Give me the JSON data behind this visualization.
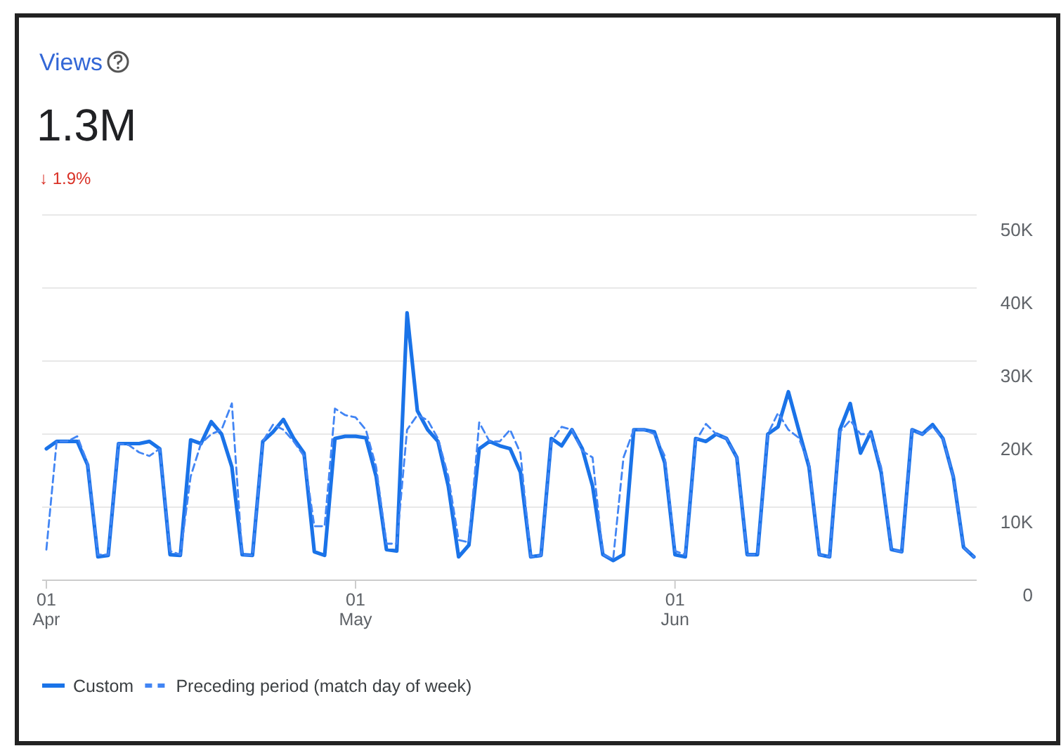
{
  "chart_data": {
    "type": "line",
    "title": "Views",
    "subtitle": "1.3M",
    "annotations": [
      "↓ 1.9%"
    ],
    "x": [
      "--04-01",
      "--04-02",
      "--04-03",
      "--04-04",
      "--04-05",
      "--04-06",
      "--04-07",
      "--04-08",
      "--04-09",
      "--04-10",
      "--04-11",
      "--04-12",
      "--04-13",
      "--04-14",
      "--04-15",
      "--04-16",
      "--04-17",
      "--04-18",
      "--04-19",
      "--04-20",
      "--04-21",
      "--04-22",
      "--04-23",
      "--04-24",
      "--04-25",
      "--04-26",
      "--04-27",
      "--04-28",
      "--04-29",
      "--04-30",
      "--05-01",
      "--05-02",
      "--05-03",
      "--05-04",
      "--05-05",
      "--05-06",
      "--05-07",
      "--05-08",
      "--05-09",
      "--05-10",
      "--05-11",
      "--05-12",
      "--05-13",
      "--05-14",
      "--05-15",
      "--05-16",
      "--05-17",
      "--05-18",
      "--05-19",
      "--05-20",
      "--05-21",
      "--05-22",
      "--05-23",
      "--05-24",
      "--05-25",
      "--05-26",
      "--05-27",
      "--05-28",
      "--05-29",
      "--05-30",
      "--05-31",
      "--06-01",
      "--06-02",
      "--06-03",
      "--06-04",
      "--06-05",
      "--06-06",
      "--06-07",
      "--06-08",
      "--06-09",
      "--06-10",
      "--06-11",
      "--06-12",
      "--06-13",
      "--06-14",
      "--06-15",
      "--06-16",
      "--06-17",
      "--06-18",
      "--06-19",
      "--06-20",
      "--06-21",
      "--06-22",
      "--06-23",
      "--06-24",
      "--06-25",
      "--06-26",
      "--06-27",
      "--06-28",
      "--06-29",
      "--06-30"
    ],
    "series": [
      {
        "name": "Custom",
        "color": "#1a73e8",
        "line_style": "solid",
        "values": [
          18000,
          19000,
          19000,
          19000,
          15800,
          3200,
          3400,
          18700,
          18700,
          18700,
          19000,
          18000,
          3500,
          3400,
          19200,
          18700,
          21700,
          20000,
          15500,
          3500,
          3400,
          19000,
          20300,
          22000,
          19400,
          17400,
          3900,
          3400,
          19400,
          19700,
          19700,
          19500,
          14200,
          4200,
          4000,
          36600,
          23200,
          20600,
          19000,
          12900,
          3200,
          4800,
          18000,
          19000,
          18400,
          18000,
          14800,
          3200,
          3400,
          19400,
          18400,
          20600,
          18000,
          12900,
          3500,
          2700,
          3500,
          20600,
          20600,
          20300,
          16100,
          3500,
          3200,
          19400,
          19000,
          20000,
          19400,
          16800,
          3500,
          3500,
          20000,
          21000,
          25800,
          20600,
          15500,
          3500,
          3200,
          20600,
          24200,
          17400,
          20300,
          14800,
          4200,
          3900,
          20600,
          20000,
          21300,
          19400,
          14200,
          4500,
          3200
        ]
      },
      {
        "name": "Preceding period (match day of week)",
        "color": "#4285f4",
        "line_style": "dashed",
        "values": [
          4200,
          19000,
          19000,
          19700,
          16000,
          3500,
          3500,
          18700,
          18500,
          17500,
          17000,
          18000,
          4000,
          3500,
          14200,
          18700,
          20000,
          20600,
          24200,
          3500,
          3400,
          19000,
          21300,
          20600,
          19000,
          17000,
          7400,
          7400,
          23500,
          22600,
          22300,
          20600,
          15500,
          5000,
          5000,
          20600,
          22600,
          21900,
          19400,
          14200,
          5500,
          5200,
          21600,
          19000,
          19000,
          20600,
          17400,
          3200,
          3400,
          19000,
          21000,
          20600,
          17700,
          16800,
          3500,
          2900,
          16800,
          20600,
          20600,
          20000,
          17000,
          4000,
          3500,
          19000,
          21400,
          20000,
          19400,
          16800,
          3500,
          3500,
          20000,
          22900,
          20600,
          19500,
          16000,
          3500,
          3200,
          20300,
          21900,
          20000,
          20000,
          15500,
          4200,
          3900,
          20600,
          20000,
          21000,
          19400,
          14200,
          4500,
          3200
        ]
      }
    ],
    "xlim": [
      "--04-01",
      "--06-30"
    ],
    "xticks": [
      {
        "value": "--04-01",
        "label": "01\nApr"
      },
      {
        "value": "--05-01",
        "label": "01\nMay"
      },
      {
        "value": "--06-01",
        "label": "01\nJun"
      }
    ],
    "ylim": [
      0,
      50000
    ],
    "yticks": [
      {
        "value": 0,
        "label": "0"
      },
      {
        "value": 10000,
        "label": "10K"
      },
      {
        "value": 20000,
        "label": "20K"
      },
      {
        "value": 30000,
        "label": "30K"
      },
      {
        "value": 40000,
        "label": "40K"
      },
      {
        "value": 50000,
        "label": "50K"
      }
    ],
    "grid": "y",
    "legend": "bottom left",
    "marker": "none"
  }
}
